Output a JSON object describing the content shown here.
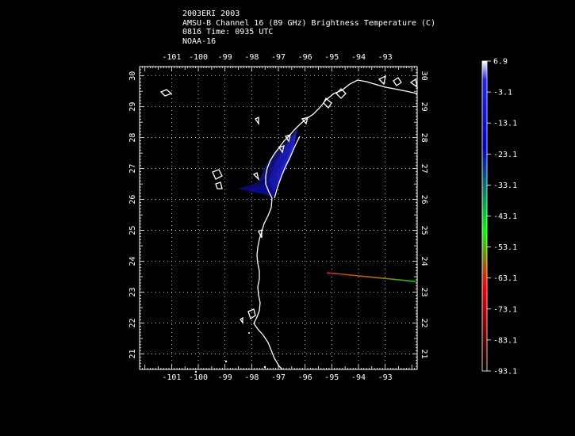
{
  "header": {
    "line1": "2003ERI 2003",
    "line2": "AMSU-B Channel 16 (89 GHz) Brightness Temperature (C)",
    "line3": "0816 Time: 0935 UTC",
    "line4": "NOAA-16"
  },
  "map": {
    "lon_range": [
      -102.2,
      -91.8
    ],
    "lat_range": [
      20.5,
      30.3
    ],
    "lon_ticks": [
      "-101",
      "-100",
      "-99",
      "-98",
      "-97",
      "-96",
      "-95",
      "-94",
      "-93"
    ],
    "lat_ticks": [
      "21",
      "22",
      "23",
      "24",
      "25",
      "26",
      "27",
      "28",
      "29",
      "30"
    ],
    "grid": true,
    "coastline_color": "#ffffff"
  },
  "colorbar": {
    "labels": [
      "6.9",
      "-3.1",
      "-13.1",
      "-23.1",
      "-33.1",
      "-43.1",
      "-53.1",
      "-63.1",
      "-73.1",
      "-83.1",
      "-93.1"
    ],
    "colors": [
      "#ffffff",
      "#0000ff",
      "#00ff00",
      "#ff0000",
      "#000000"
    ]
  }
}
